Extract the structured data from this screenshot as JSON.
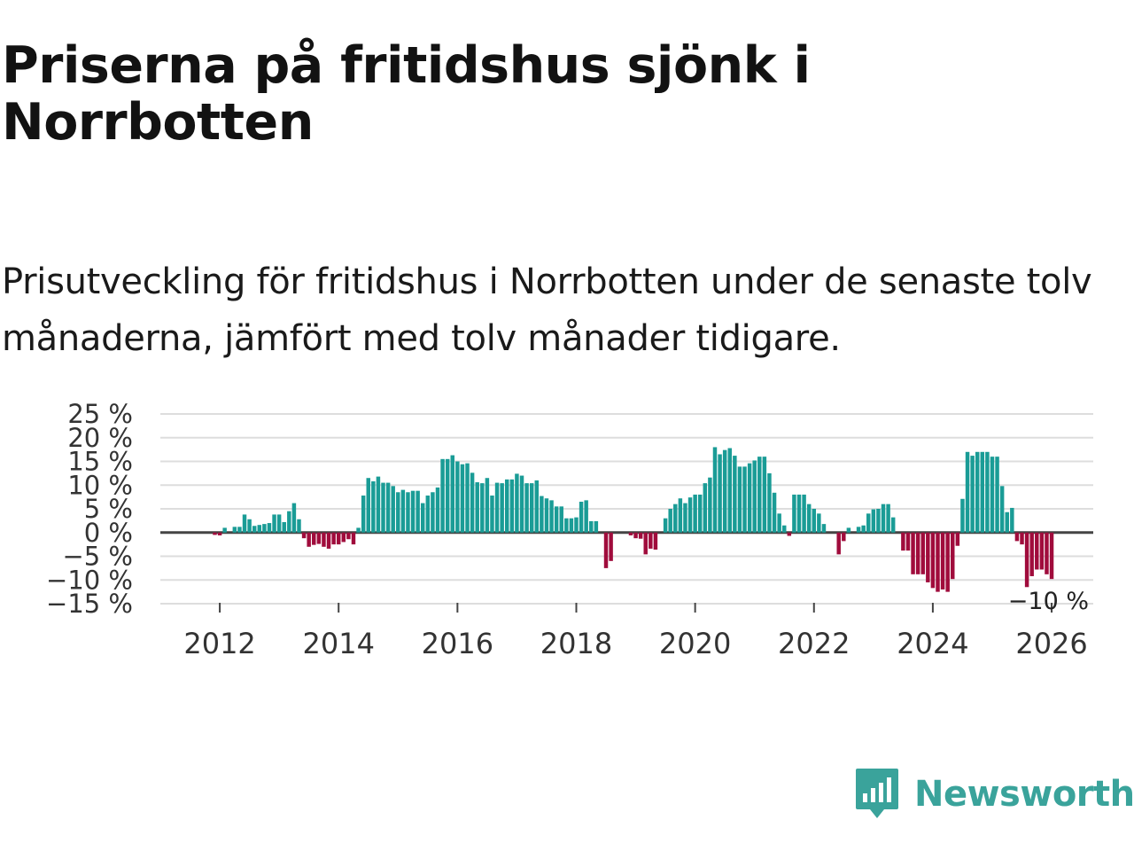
{
  "title": "Priserna på fritidshus sjönk i Norrbotten",
  "subtitle": "Prisutveckling för fritidshus i Norrbotten under de senaste tolv månaderna, jämfört med tolv månader tidigare.",
  "brand": {
    "name": "Newsworthy",
    "icon": "newsworthy-logo-icon",
    "color": "#3aa39b"
  },
  "colors": {
    "positive": "#1a9c96",
    "negative": "#a00c3c",
    "grid": "#dddddd",
    "zero": "#444444"
  },
  "chart_data": {
    "type": "bar",
    "title": "Prisutveckling för fritidshus i Norrbotten under de senaste tolv månaderna, jämfört med tolv månader tidigare.",
    "xlabel": "",
    "ylabel": "",
    "ylim": [
      -15,
      25
    ],
    "xlim": [
      2011.0,
      2026.7
    ],
    "yticks": [
      25,
      20,
      15,
      10,
      5,
      0,
      -5,
      -10,
      -15
    ],
    "ytick_labels": [
      "25 %",
      "20 %",
      "15 %",
      "10 %",
      "5 %",
      "0 %",
      "−5 %",
      "−10 %",
      "−15 %"
    ],
    "xticks": [
      2012,
      2014,
      2016,
      2018,
      2020,
      2022,
      2024,
      2026
    ],
    "xtick_labels": [
      "2012",
      "2014",
      "2016",
      "2018",
      "2020",
      "2022",
      "2024",
      "2026"
    ],
    "last_value_label": "−10 %",
    "start_period": [
      2011,
      1
    ],
    "values": [
      0,
      0,
      0,
      0,
      0,
      0,
      0,
      0,
      0,
      0,
      0,
      -0.5,
      -0.6,
      1,
      0,
      1.2,
      1.2,
      3.8,
      2.8,
      1.4,
      1.6,
      1.8,
      2,
      3.8,
      3.8,
      2.2,
      4.5,
      6.2,
      2.8,
      -1.2,
      -3,
      -2.6,
      -2.4,
      -3,
      -3.4,
      -2.5,
      -2.5,
      -2,
      -1.4,
      -2.5,
      1,
      7.8,
      11.5,
      10.8,
      11.8,
      10.5,
      10.5,
      9.8,
      8.5,
      9,
      8.5,
      8.8,
      8.8,
      6.2,
      7.8,
      8.5,
      9.5,
      15.5,
      15.5,
      16.3,
      15,
      14.4,
      14.6,
      12.6,
      10.6,
      10.4,
      11.5,
      7.8,
      10.5,
      10.4,
      11.2,
      11.2,
      12.4,
      12,
      10.4,
      10.4,
      11,
      7.7,
      7.2,
      6.8,
      5.5,
      5.5,
      3,
      3,
      3.2,
      6.5,
      6.8,
      2.4,
      2.4,
      0,
      -7.5,
      -6,
      0,
      0,
      0,
      -0.6,
      -1.2,
      -1.3,
      -4.6,
      -3.4,
      -3.6,
      0,
      3,
      5,
      6,
      7.2,
      6.2,
      7.4,
      8,
      8,
      10.4,
      11.6,
      18,
      16.5,
      17.4,
      17.8,
      16.2,
      13.9,
      13.9,
      14.6,
      15.2,
      16,
      16,
      12.5,
      8.4,
      4,
      1.5,
      -0.7,
      8,
      8,
      8,
      6,
      5,
      4,
      1.8,
      0,
      0,
      -4.6,
      -1.8,
      1,
      0,
      1.2,
      1.5,
      4,
      4.9,
      5,
      6,
      6,
      3.2,
      0,
      -3.8,
      -3.8,
      -8.8,
      -8.8,
      -8.8,
      -10.5,
      -11.7,
      -12.5,
      -12,
      -12.5,
      -9.8,
      -2.8,
      7.1,
      17,
      16.2,
      17,
      17,
      17,
      16,
      16,
      9.8,
      4.3,
      5.2,
      -1.8,
      -2.5,
      -11.5,
      -9.2,
      -7.8,
      -7.8,
      -8.8,
      -9.8
    ]
  }
}
